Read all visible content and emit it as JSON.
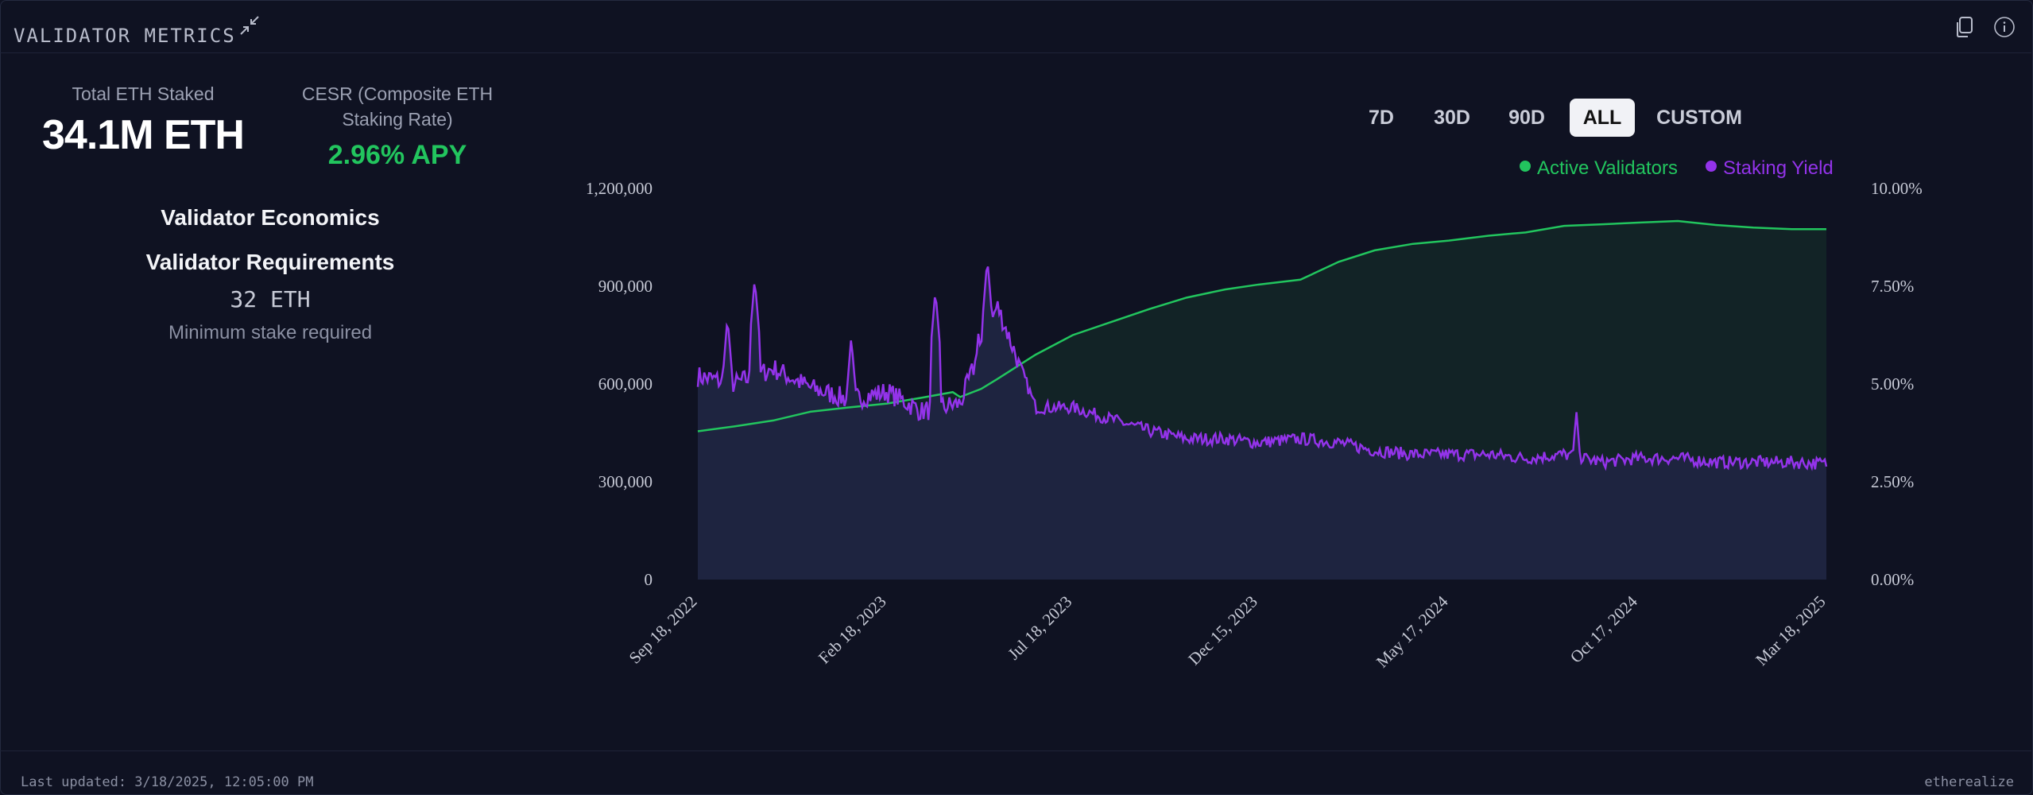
{
  "header": {
    "title": "VALIDATOR METRICS",
    "icons": [
      "collapse-icon",
      "copy-icon",
      "info-icon"
    ]
  },
  "stats": {
    "total_staked_label": "Total ETH Staked",
    "total_staked_value": "34.1M ETH",
    "cesr_label_line1": "CESR (Composite ETH",
    "cesr_label_line2": "Staking Rate)",
    "cesr_value": "2.96% APY"
  },
  "economics": {
    "title": "Validator Economics",
    "requirements_title": "Validator Requirements",
    "min_stake_value": "32 ETH",
    "min_stake_label": "Minimum stake required"
  },
  "range_buttons": [
    {
      "label": "7D",
      "active": false
    },
    {
      "label": "30D",
      "active": false
    },
    {
      "label": "90D",
      "active": false
    },
    {
      "label": "ALL",
      "active": true
    },
    {
      "label": "CUSTOM",
      "active": false
    }
  ],
  "legend": [
    {
      "label": "Active Validators",
      "color": "#22c55e"
    },
    {
      "label": "Staking Yield",
      "color": "#9333ea"
    }
  ],
  "footer": {
    "last_updated": "Last updated: 3/18/2025, 12:05:00 PM",
    "brand": "etherealize"
  },
  "colors": {
    "background": "#0f1222",
    "validators_line": "#22c55e",
    "validators_fill": "#122326",
    "yield_line": "#9333ea",
    "lower_fill": "#1e2440"
  },
  "chart_data": {
    "type": "area",
    "x_ticks": [
      "Sep 18, 2022",
      "Feb 18, 2023",
      "Jul 18, 2023",
      "Dec 15, 2023",
      "May 17, 2024",
      "Oct 17, 2024",
      "Mar 18, 2025"
    ],
    "y_left_ticks": [
      "0",
      "300,000",
      "600,000",
      "900,000",
      "1,200,000"
    ],
    "y_left_lim": [
      0,
      1200000
    ],
    "y_right_ticks": [
      "0.00%",
      "2.50%",
      "5.00%",
      "7.50%",
      "10.00%"
    ],
    "y_right_lim": [
      0,
      10
    ],
    "series": [
      {
        "name": "Active Validators",
        "axis": "left",
        "x": [
          "Sep 18, 2022",
          "Oct 18, 2022",
          "Nov 18, 2022",
          "Dec 18, 2022",
          "Jan 18, 2023",
          "Feb 18, 2023",
          "Mar 18, 2023",
          "Apr 12, 2023",
          "Apr 18, 2023",
          "May 5, 2023",
          "May 18, 2023",
          "Jun 18, 2023",
          "Jul 18, 2023",
          "Aug 18, 2023",
          "Sep 18, 2023",
          "Oct 18, 2023",
          "Nov 18, 2023",
          "Dec 15, 2023",
          "Jan 18, 2024",
          "Feb 18, 2024",
          "Mar 18, 2024",
          "Apr 18, 2024",
          "May 17, 2024",
          "Jun 18, 2024",
          "Jul 18, 2024",
          "Aug 18, 2024",
          "Sep 18, 2024",
          "Oct 17, 2024",
          "Nov 18, 2024",
          "Dec 18, 2024",
          "Jan 18, 2025",
          "Feb 18, 2025",
          "Mar 18, 2025"
        ],
        "values": [
          455000,
          470000,
          488000,
          515000,
          528000,
          540000,
          558000,
          575000,
          560000,
          585000,
          615000,
          690000,
          750000,
          790000,
          830000,
          865000,
          890000,
          905000,
          920000,
          975000,
          1010000,
          1030000,
          1040000,
          1055000,
          1065000,
          1085000,
          1090000,
          1095000,
          1100000,
          1088000,
          1080000,
          1075000,
          1075000
        ]
      },
      {
        "name": "Staking Yield",
        "axis": "right",
        "x": [
          "Sep 18, 2022",
          "Oct 18, 2022",
          "Nov 18, 2022",
          "Dec 18, 2022",
          "Jan 18, 2023",
          "Feb 18, 2023",
          "Mar 18, 2023",
          "Apr 18, 2023",
          "May 18, 2023",
          "Jun 18, 2023",
          "Jul 18, 2023",
          "Aug 18, 2023",
          "Sep 18, 2023",
          "Oct 18, 2023",
          "Nov 18, 2023",
          "Dec 15, 2023",
          "Jan 18, 2024",
          "Feb 18, 2024",
          "Mar 18, 2024",
          "Apr 18, 2024",
          "May 17, 2024",
          "Jun 18, 2024",
          "Jul 18, 2024",
          "Aug 18, 2024",
          "Sep 18, 2024",
          "Oct 17, 2024",
          "Nov 18, 2024",
          "Dec 18, 2024",
          "Jan 18, 2025",
          "Feb 18, 2025",
          "Mar 18, 2025"
        ],
        "values": [
          5.2,
          5.0,
          5.4,
          4.9,
          4.6,
          4.8,
          4.3,
          4.5,
          7.0,
          4.4,
          4.4,
          4.1,
          3.8,
          3.6,
          3.6,
          3.5,
          3.6,
          3.5,
          3.3,
          3.2,
          3.2,
          3.2,
          3.1,
          3.2,
          3.0,
          3.1,
          3.1,
          3.0,
          3.0,
          3.0,
          2.96
        ],
        "peaks": [
          {
            "x": "Oct 12, 2022",
            "value": 6.7
          },
          {
            "x": "Nov 3, 2022",
            "value": 7.7
          },
          {
            "x": "Jan 20, 2023",
            "value": 6.2
          },
          {
            "x": "Mar 29, 2023",
            "value": 7.4
          },
          {
            "x": "May 3, 2023",
            "value": 6.4
          },
          {
            "x": "May 10, 2023",
            "value": 8.2
          },
          {
            "x": "Aug 28, 2024",
            "value": 4.3
          }
        ]
      }
    ],
    "grid": false,
    "legend_position": "top-right"
  }
}
